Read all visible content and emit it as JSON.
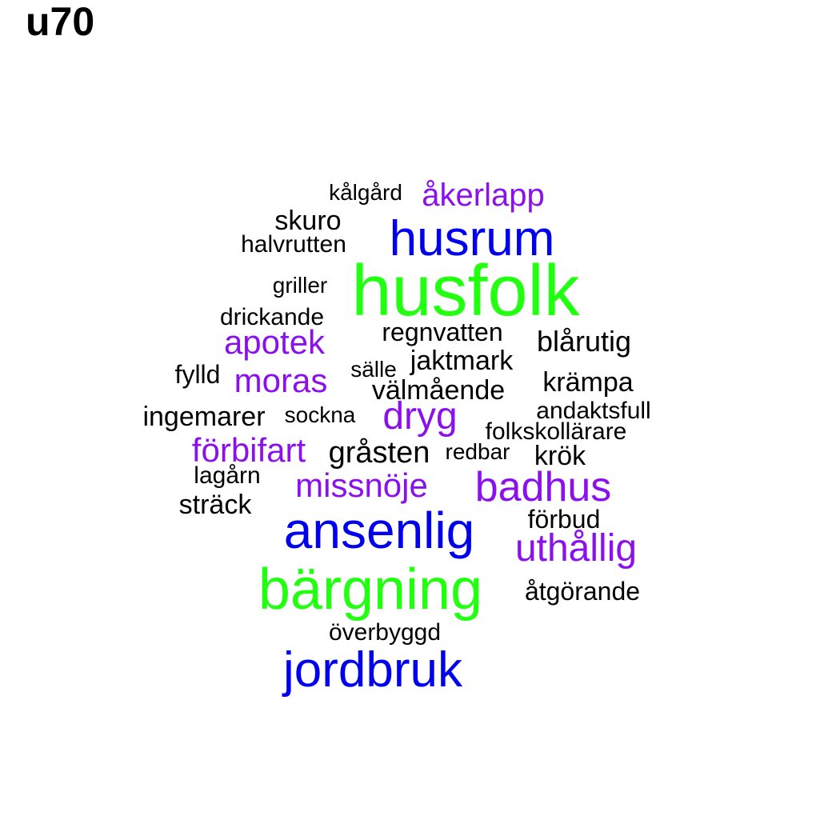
{
  "title": "u70",
  "colors": {
    "green": "#22ff11",
    "blue": "#0000ee",
    "purple": "#8a11ee",
    "black": "#000000"
  },
  "words": [
    {
      "text": "kålgård",
      "color": "black"
    },
    {
      "text": "åkerlapp",
      "color": "purple"
    },
    {
      "text": "skuro",
      "color": "black"
    },
    {
      "text": "husrum",
      "color": "blue"
    },
    {
      "text": "halvrutten",
      "color": "black"
    },
    {
      "text": "husfolk",
      "color": "green"
    },
    {
      "text": "griller",
      "color": "black"
    },
    {
      "text": "drickande",
      "color": "black"
    },
    {
      "text": "regnvatten",
      "color": "black"
    },
    {
      "text": "apotek",
      "color": "purple"
    },
    {
      "text": "blårutig",
      "color": "black"
    },
    {
      "text": "jaktmark",
      "color": "black"
    },
    {
      "text": "sälle",
      "color": "black"
    },
    {
      "text": "fylld",
      "color": "black"
    },
    {
      "text": "moras",
      "color": "purple"
    },
    {
      "text": "krämpa",
      "color": "black"
    },
    {
      "text": "välmående",
      "color": "black"
    },
    {
      "text": "andaktsfull",
      "color": "black"
    },
    {
      "text": "ingemarer",
      "color": "black"
    },
    {
      "text": "sockna",
      "color": "black"
    },
    {
      "text": "dryg",
      "color": "purple"
    },
    {
      "text": "folkskollärare",
      "color": "black"
    },
    {
      "text": "förbifart",
      "color": "purple"
    },
    {
      "text": "gråsten",
      "color": "black"
    },
    {
      "text": "redbar",
      "color": "black"
    },
    {
      "text": "krök",
      "color": "black"
    },
    {
      "text": "lagårn",
      "color": "black"
    },
    {
      "text": "badhus",
      "color": "purple"
    },
    {
      "text": "missnöje",
      "color": "purple"
    },
    {
      "text": "sträck",
      "color": "black"
    },
    {
      "text": "förbud",
      "color": "black"
    },
    {
      "text": "ansenlig",
      "color": "blue"
    },
    {
      "text": "uthållig",
      "color": "purple"
    },
    {
      "text": "bärgning",
      "color": "green"
    },
    {
      "text": "åtgörande",
      "color": "black"
    },
    {
      "text": "överbyggd",
      "color": "black"
    },
    {
      "text": "jordbruk",
      "color": "blue"
    }
  ]
}
